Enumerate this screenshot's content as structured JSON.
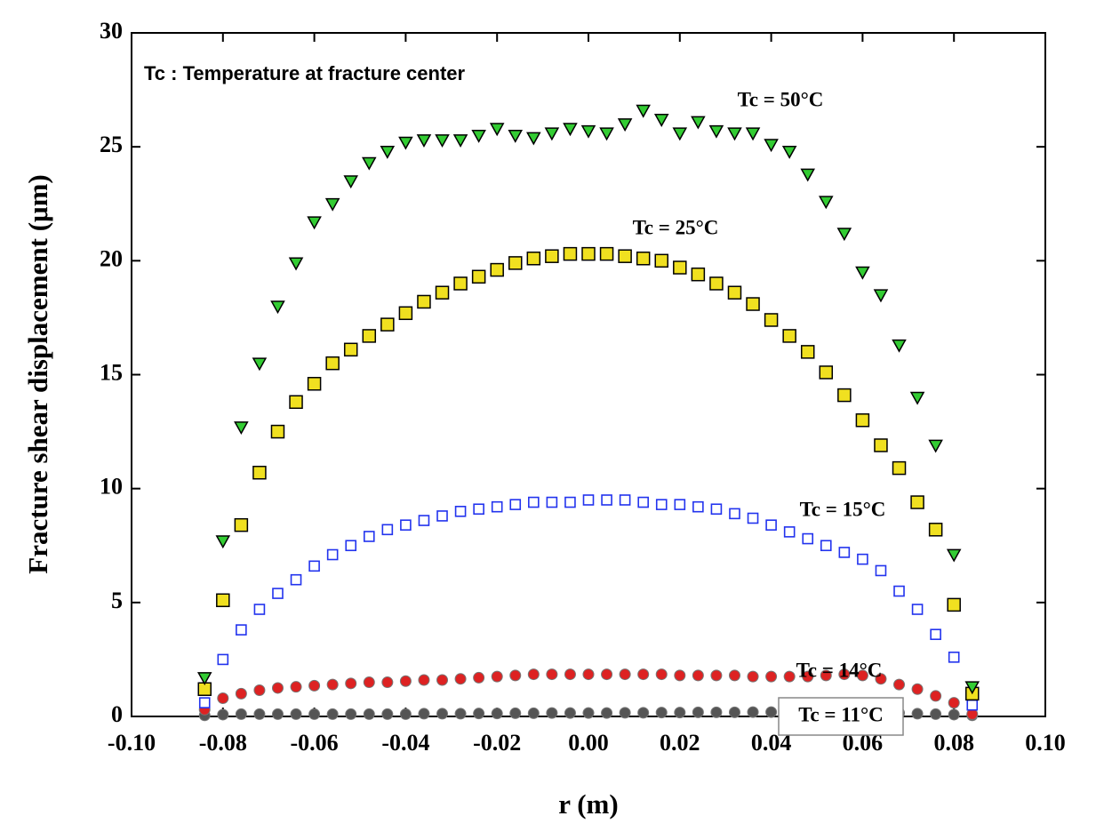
{
  "chart_data": {
    "type": "scatter",
    "annotation": "Tc : Temperature at fracture center",
    "xlabel": "r (m)",
    "ylabel": "Fracture shear displacement (μm)",
    "xlim": [
      -0.1,
      0.1
    ],
    "ylim": [
      0,
      30
    ],
    "xticks": [
      {
        "value": -0.1,
        "label": "-0.10"
      },
      {
        "value": -0.08,
        "label": "-0.08"
      },
      {
        "value": -0.06,
        "label": "-0.06"
      },
      {
        "value": -0.04,
        "label": "-0.04"
      },
      {
        "value": -0.02,
        "label": "-0.02"
      },
      {
        "value": 0,
        "label": "0.00"
      },
      {
        "value": 0.02,
        "label": "0.02"
      },
      {
        "value": 0.04,
        "label": "0.04"
      },
      {
        "value": 0.06,
        "label": "0.06"
      },
      {
        "value": 0.08,
        "label": "0.08"
      },
      {
        "value": 0.1,
        "label": "0.10"
      }
    ],
    "yticks": [
      0,
      5,
      10,
      15,
      20,
      25,
      30
    ],
    "x": [
      -0.084,
      -0.08,
      -0.076,
      -0.072,
      -0.068,
      -0.064,
      -0.06,
      -0.056,
      -0.052,
      -0.048,
      -0.044,
      -0.04,
      -0.036,
      -0.032,
      -0.028,
      -0.024,
      -0.02,
      -0.016,
      -0.012,
      -0.008,
      -0.004,
      0,
      0.004,
      0.008,
      0.012,
      0.016,
      0.02,
      0.024,
      0.028,
      0.032,
      0.036,
      0.04,
      0.044,
      0.048,
      0.052,
      0.056,
      0.06,
      0.064,
      0.068,
      0.072,
      0.076,
      0.08,
      0.084
    ],
    "series": [
      {
        "name": "Tc = 50°C",
        "color": "#33cc33",
        "marker": "triangle-down",
        "values": [
          1.7,
          7.7,
          12.7,
          15.5,
          18.0,
          19.9,
          21.7,
          22.5,
          23.5,
          24.3,
          24.8,
          25.2,
          25.3,
          25.3,
          25.3,
          25.5,
          25.8,
          25.5,
          25.4,
          25.6,
          25.8,
          25.7,
          25.6,
          26.0,
          26.6,
          26.2,
          25.6,
          26.1,
          25.7,
          25.6,
          25.6,
          25.1,
          24.8,
          23.8,
          22.6,
          21.2,
          19.5,
          18.5,
          16.3,
          14.0,
          11.9,
          7.1,
          1.3
        ]
      },
      {
        "name": "Tc = 25°C",
        "color": "#f0e020",
        "marker": "square",
        "values": [
          1.2,
          5.1,
          8.4,
          10.7,
          12.5,
          13.8,
          14.6,
          15.5,
          16.1,
          16.7,
          17.2,
          17.7,
          18.2,
          18.6,
          19.0,
          19.3,
          19.6,
          19.9,
          20.1,
          20.2,
          20.3,
          20.3,
          20.3,
          20.2,
          20.1,
          20.0,
          19.7,
          19.4,
          19.0,
          18.6,
          18.1,
          17.4,
          16.7,
          16.0,
          15.1,
          14.1,
          13.0,
          11.9,
          10.9,
          9.4,
          8.2,
          4.9,
          1.0
        ]
      },
      {
        "name": "Tc = 15°C",
        "color": "#2233ee",
        "marker": "square-open",
        "values": [
          0.6,
          2.5,
          3.8,
          4.7,
          5.4,
          6.0,
          6.6,
          7.1,
          7.5,
          7.9,
          8.2,
          8.4,
          8.6,
          8.8,
          9.0,
          9.1,
          9.2,
          9.3,
          9.4,
          9.4,
          9.4,
          9.5,
          9.5,
          9.5,
          9.4,
          9.3,
          9.3,
          9.2,
          9.1,
          8.9,
          8.7,
          8.4,
          8.1,
          7.8,
          7.5,
          7.2,
          6.9,
          6.4,
          5.5,
          4.7,
          3.6,
          2.6,
          0.5
        ]
      },
      {
        "name": "Tc = 14°C",
        "color": "#dd2222",
        "marker": "circle",
        "values": [
          0.3,
          0.8,
          1.0,
          1.15,
          1.25,
          1.3,
          1.35,
          1.4,
          1.45,
          1.5,
          1.5,
          1.55,
          1.6,
          1.6,
          1.65,
          1.7,
          1.75,
          1.8,
          1.85,
          1.85,
          1.85,
          1.85,
          1.85,
          1.85,
          1.85,
          1.85,
          1.8,
          1.8,
          1.8,
          1.8,
          1.75,
          1.75,
          1.75,
          1.75,
          1.8,
          1.85,
          1.8,
          1.65,
          1.4,
          1.2,
          0.9,
          0.6,
          0.1
        ]
      },
      {
        "name": "Tc = 11°C",
        "color": "#555555",
        "marker": "circle",
        "values": [
          0.05,
          0.08,
          0.1,
          0.1,
          0.1,
          0.1,
          0.1,
          0.1,
          0.1,
          0.1,
          0.1,
          0.1,
          0.12,
          0.12,
          0.12,
          0.13,
          0.13,
          0.14,
          0.14,
          0.15,
          0.15,
          0.15,
          0.15,
          0.16,
          0.16,
          0.17,
          0.17,
          0.18,
          0.18,
          0.18,
          0.19,
          0.19,
          0.2,
          0.2,
          0.2,
          0.2,
          0.2,
          0.18,
          0.15,
          0.12,
          0.1,
          0.08,
          0.05
        ]
      }
    ]
  }
}
